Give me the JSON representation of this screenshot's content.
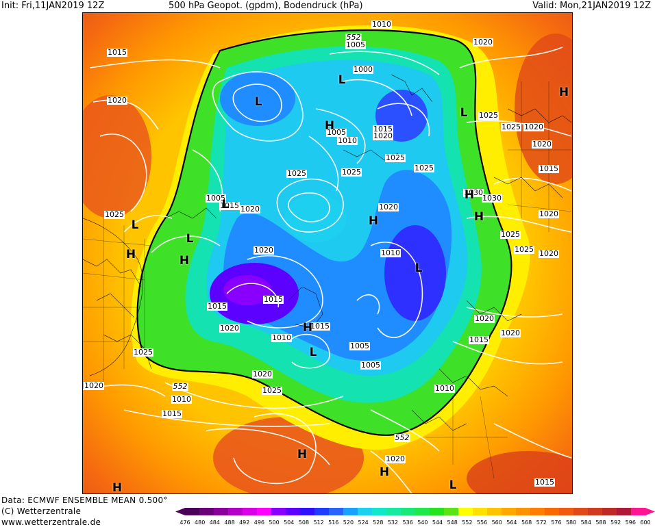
{
  "header": {
    "init": "Init: Fri,11JAN2019 12Z",
    "title": "500 hPa Geopot. (gpdm), Bodendruck (hPa)",
    "valid": "Valid: Mon,21JAN2019 12Z"
  },
  "footer": {
    "data": "Data: ECMWF ENSEMBLE MEAN 0.500°",
    "copyright": "(C) Wetterzentrale",
    "url": "www.wetterzentrale.de"
  },
  "colorbar": {
    "ticks": [
      "476",
      "480",
      "484",
      "488",
      "492",
      "496",
      "500",
      "504",
      "508",
      "512",
      "516",
      "520",
      "524",
      "528",
      "532",
      "536",
      "540",
      "544",
      "548",
      "552",
      "556",
      "560",
      "564",
      "568",
      "572",
      "576",
      "580",
      "584",
      "588",
      "592",
      "596",
      "600"
    ],
    "colors": [
      "#4a0058",
      "#6a007a",
      "#8a009a",
      "#b200c8",
      "#d800e6",
      "#ff00ff",
      "#8a00ff",
      "#5c00ff",
      "#2e10ff",
      "#1f3cff",
      "#2a62ff",
      "#1aa0ff",
      "#1ed0f0",
      "#10e8c8",
      "#14eaa0",
      "#18e878",
      "#1ee84a",
      "#24e41c",
      "#5ae414",
      "#ffff00",
      "#ffe000",
      "#ffc400",
      "#ffa800",
      "#ff9200",
      "#ff7e00",
      "#f86a00",
      "#f05a10",
      "#e04a18",
      "#d03a20",
      "#c02828",
      "#b01838",
      "#ff1493"
    ]
  },
  "map": {
    "isobar_labels": [
      {
        "text": "1010"
      },
      {
        "text": "552"
      },
      {
        "text": "1005"
      },
      {
        "text": "1020"
      },
      {
        "text": "1015"
      },
      {
        "text": "1000"
      },
      {
        "text": "1020"
      },
      {
        "text": "1025"
      },
      {
        "text": "1025"
      },
      {
        "text": "1020"
      },
      {
        "text": "1005"
      },
      {
        "text": "1010"
      },
      {
        "text": "1015"
      },
      {
        "text": "1020"
      },
      {
        "text": "1025"
      },
      {
        "text": "1025"
      },
      {
        "text": "1025"
      },
      {
        "text": "1025"
      },
      {
        "text": "1020"
      },
      {
        "text": "1015"
      },
      {
        "text": "1030"
      },
      {
        "text": "1030"
      },
      {
        "text": "1005"
      },
      {
        "text": "1015"
      },
      {
        "text": "1020"
      },
      {
        "text": "1020"
      },
      {
        "text": "1025"
      },
      {
        "text": "1025"
      },
      {
        "text": "1020"
      },
      {
        "text": "1025"
      },
      {
        "text": "1020"
      },
      {
        "text": "1020"
      },
      {
        "text": "1010"
      },
      {
        "text": "1015"
      },
      {
        "text": "1015"
      },
      {
        "text": "1020"
      },
      {
        "text": "1015"
      },
      {
        "text": "1010"
      },
      {
        "text": "1005"
      },
      {
        "text": "1005"
      },
      {
        "text": "1020"
      },
      {
        "text": "1015"
      },
      {
        "text": "1020"
      },
      {
        "text": "1025"
      },
      {
        "text": "1025"
      },
      {
        "text": "1020"
      },
      {
        "text": "552"
      },
      {
        "text": "1010"
      },
      {
        "text": "1015"
      },
      {
        "text": "1010"
      },
      {
        "text": "552"
      },
      {
        "text": "1020"
      },
      {
        "text": "1015"
      },
      {
        "text": "1020"
      }
    ],
    "pressure_centers": [
      {
        "type": "L"
      },
      {
        "type": "L"
      },
      {
        "type": "H"
      },
      {
        "type": "L"
      },
      {
        "type": "H"
      },
      {
        "type": "L"
      },
      {
        "type": "L"
      },
      {
        "type": "L"
      },
      {
        "type": "H"
      },
      {
        "type": "H"
      },
      {
        "type": "H"
      },
      {
        "type": "H"
      },
      {
        "type": "L"
      },
      {
        "type": "H"
      },
      {
        "type": "L"
      },
      {
        "type": "H"
      },
      {
        "type": "H"
      },
      {
        "type": "L"
      },
      {
        "type": "H"
      },
      {
        "type": "H"
      }
    ]
  }
}
